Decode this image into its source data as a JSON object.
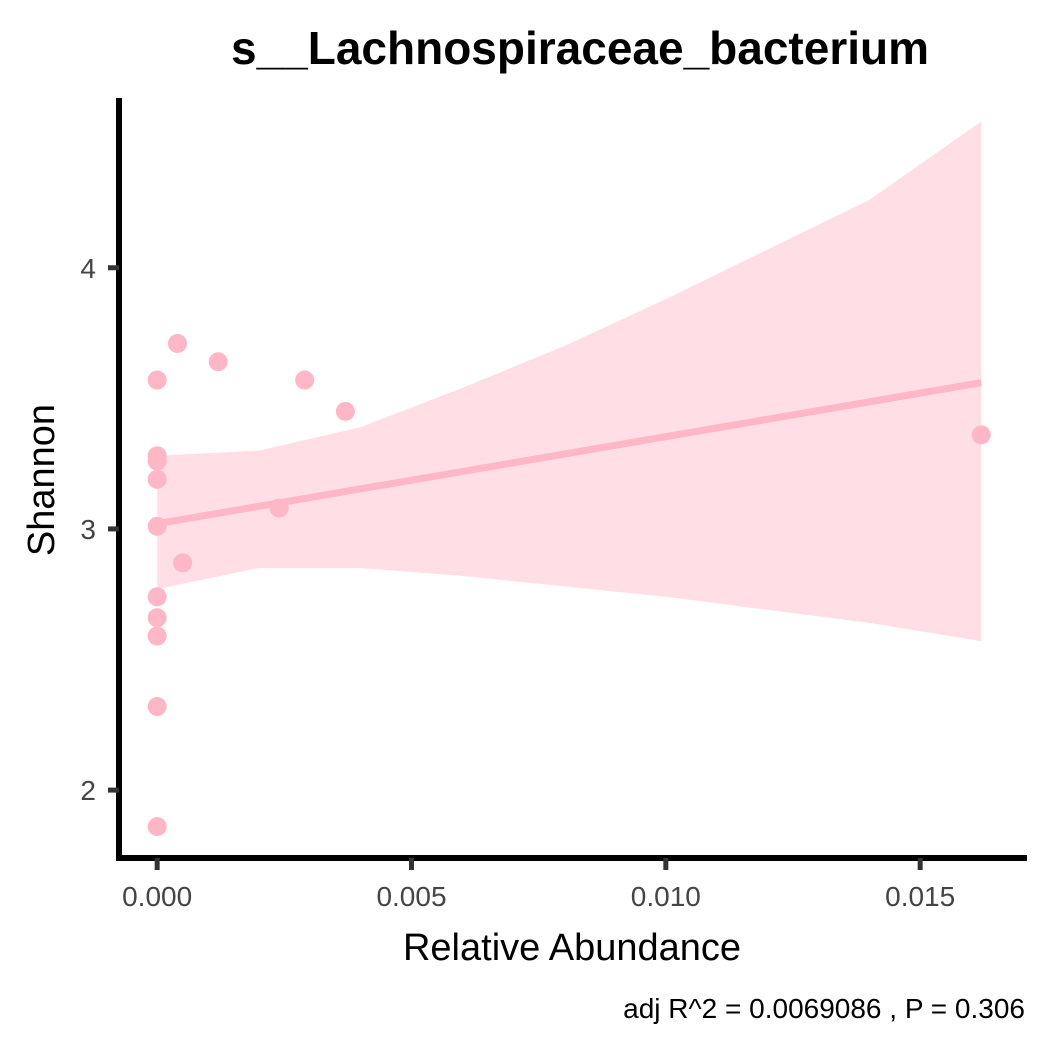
{
  "chart_data": {
    "type": "scatter",
    "title": "s__Lachnospiraceae_bacterium",
    "xlabel": "Relative Abundance",
    "ylabel": "Shannon",
    "xlim": [
      -0.00075,
      0.0171
    ],
    "ylim": [
      1.74,
      4.65
    ],
    "xticks": [
      0.0,
      0.005,
      0.01,
      0.015
    ],
    "xtick_labels": [
      "0.000",
      "0.005",
      "0.010",
      "0.015"
    ],
    "yticks": [
      2,
      3,
      4
    ],
    "ytick_labels": [
      "2",
      "3",
      "4"
    ],
    "grid": false,
    "legend": "none",
    "point_color": "#FFB6C6",
    "line_color": "#FFB6C6",
    "band_color": "#FFDFE5",
    "points": [
      {
        "x": 0.0,
        "y": 1.86
      },
      {
        "x": 0.0,
        "y": 2.32
      },
      {
        "x": 0.0,
        "y": 2.59
      },
      {
        "x": 0.0,
        "y": 2.66
      },
      {
        "x": 0.0,
        "y": 2.74
      },
      {
        "x": 0.0,
        "y": 3.01
      },
      {
        "x": 0.0,
        "y": 3.19
      },
      {
        "x": 0.0,
        "y": 3.26
      },
      {
        "x": 0.0,
        "y": 3.28
      },
      {
        "x": 0.0,
        "y": 3.57
      },
      {
        "x": 0.0004,
        "y": 3.71
      },
      {
        "x": 0.0005,
        "y": 2.87
      },
      {
        "x": 0.0012,
        "y": 3.64
      },
      {
        "x": 0.0024,
        "y": 3.08
      },
      {
        "x": 0.0029,
        "y": 3.57
      },
      {
        "x": 0.0037,
        "y": 3.45
      },
      {
        "x": 0.0162,
        "y": 3.36
      }
    ],
    "fit": {
      "type": "linear",
      "x": [
        0.0,
        0.0162
      ],
      "y": [
        3.02,
        3.56
      ]
    },
    "confidence_band": {
      "x": [
        0.0,
        0.002,
        0.004,
        0.006,
        0.008,
        0.01,
        0.012,
        0.014,
        0.0162
      ],
      "upper": [
        3.28,
        3.3,
        3.39,
        3.54,
        3.7,
        3.88,
        4.07,
        4.26,
        4.56
      ],
      "lower": [
        2.77,
        2.85,
        2.85,
        2.82,
        2.78,
        2.74,
        2.69,
        2.64,
        2.57
      ]
    },
    "annotation": "adj R^2 =  0.0069086 , P = 0.306"
  }
}
